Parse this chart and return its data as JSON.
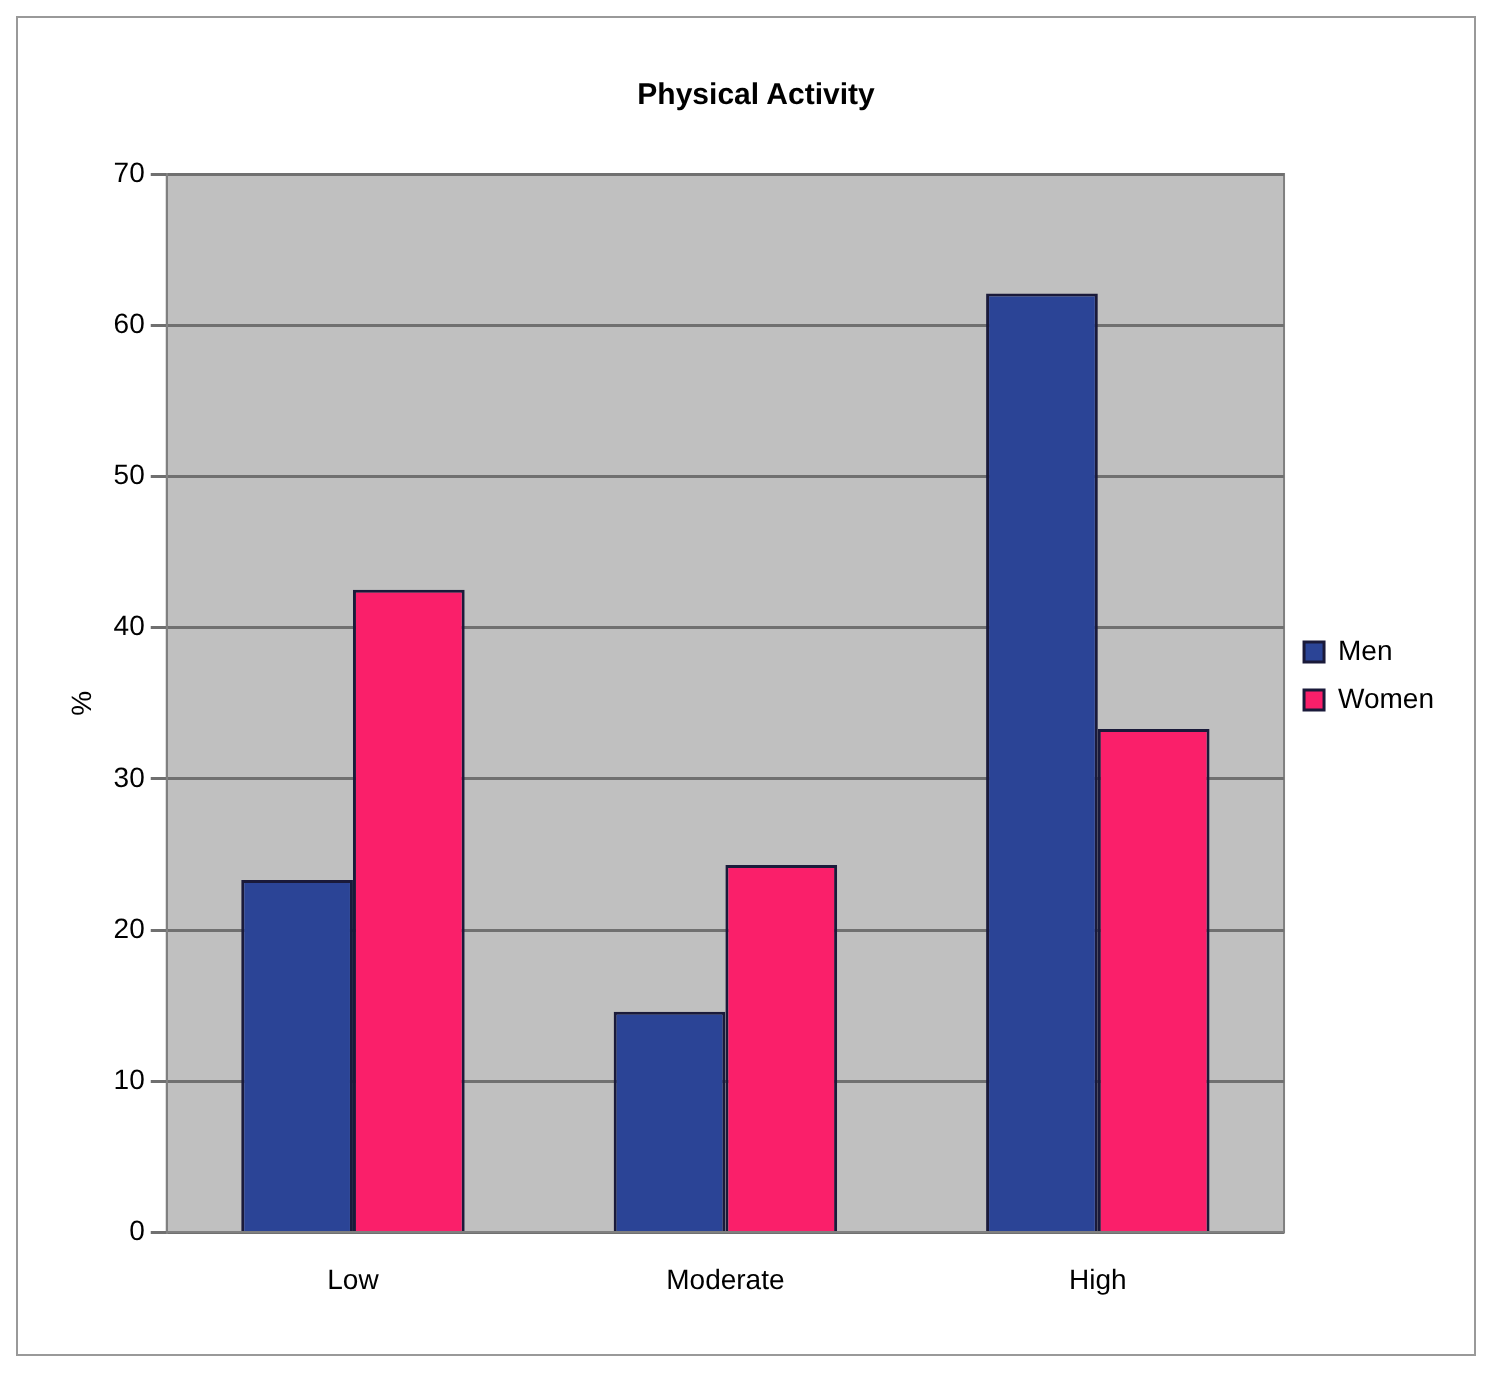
{
  "chart_data": {
    "type": "bar",
    "title": "Physical Activity",
    "ylabel": "%",
    "categories": [
      "Low",
      "Moderate",
      "High"
    ],
    "series": [
      {
        "name": "Men",
        "color": "#2b4496",
        "values": [
          23.3,
          14.6,
          62.1
        ]
      },
      {
        "name": "Women",
        "color": "#fa1f6a",
        "values": [
          42.5,
          24.3,
          33.3
        ]
      }
    ],
    "ylim": [
      0,
      70
    ],
    "yticks": [
      0,
      10,
      20,
      30,
      40,
      50,
      60,
      70
    ],
    "grid": "y",
    "legend": "right"
  }
}
